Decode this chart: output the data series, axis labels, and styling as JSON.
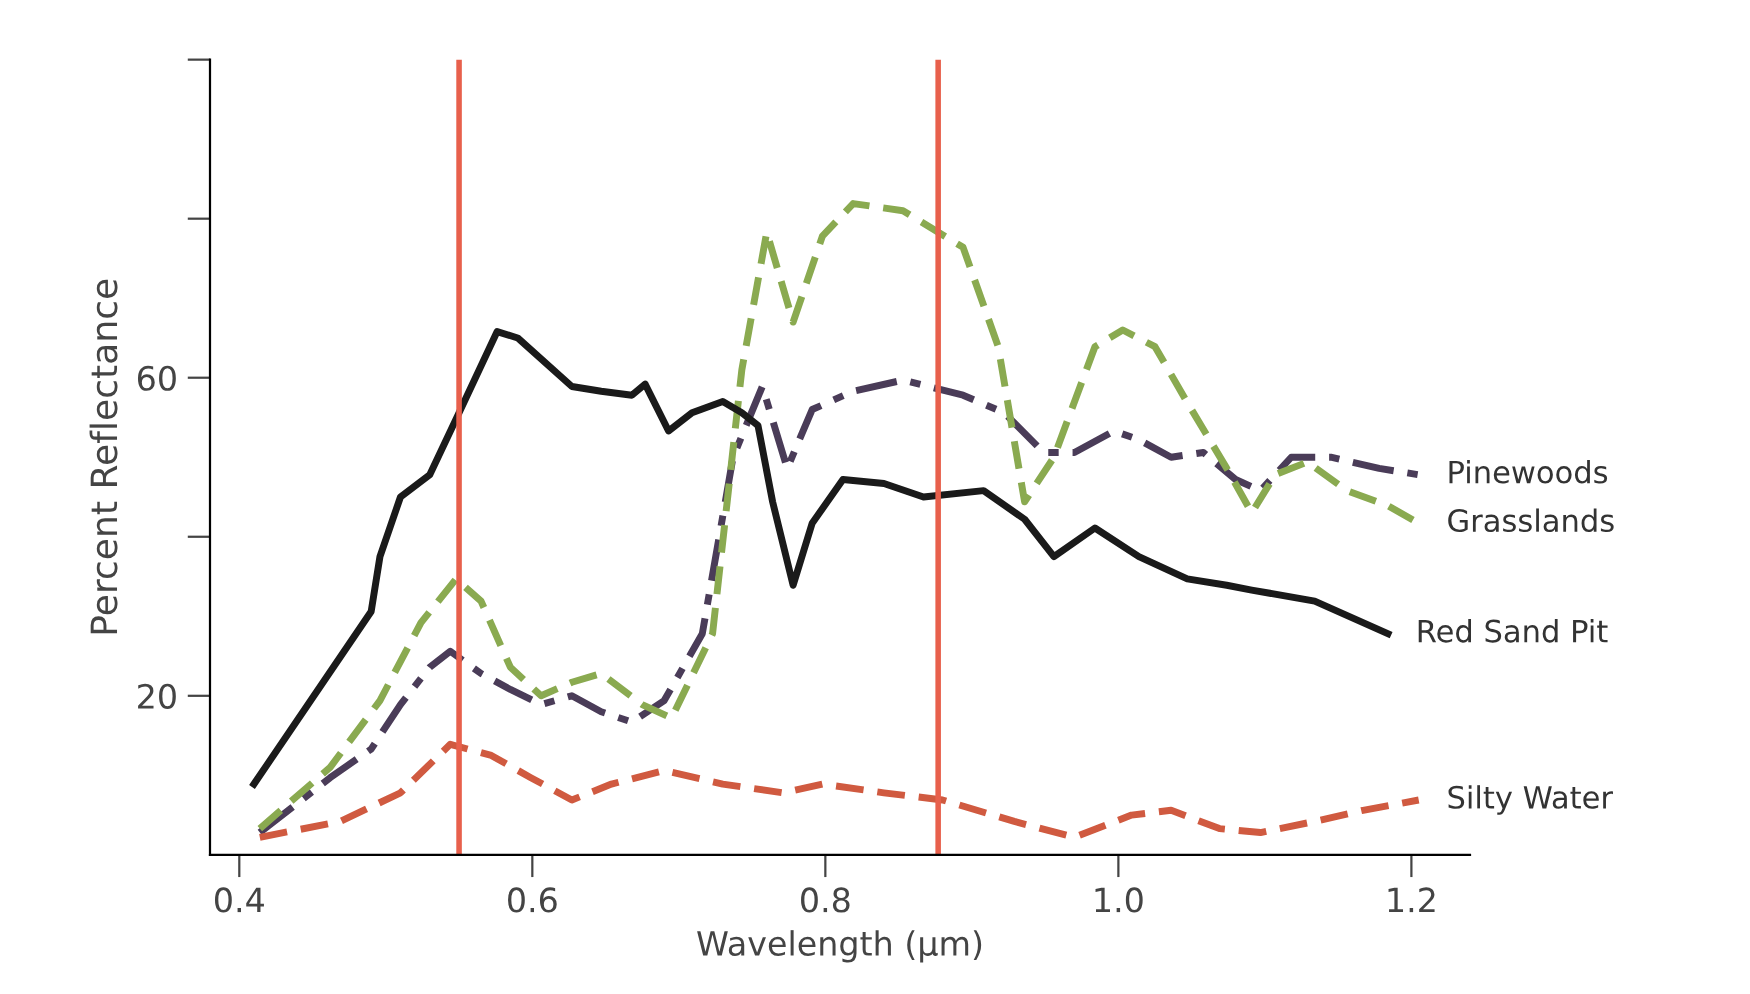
{
  "chart_data": {
    "type": "line",
    "xlabel": "Wavelength (μm)",
    "ylabel": "Percent Reflectance",
    "xlim": [
      0.38,
      1.24
    ],
    "ylim": [
      0,
      100
    ],
    "xticks": [
      0.4,
      0.6,
      0.8,
      {
        "value": 1,
        "label": "1.0"
      },
      1.2
    ],
    "yticks": [
      {
        "value": 20,
        "label": "20"
      },
      {
        "value": 40,
        "label": null
      },
      {
        "value": 60,
        "label": "60"
      },
      {
        "value": 80,
        "label": null
      },
      {
        "value": 100,
        "label": null
      }
    ],
    "grid": false,
    "legend": false,
    "ref_lines": [
      {
        "axis": "x",
        "value": 0.55,
        "color": "#e8604c"
      },
      {
        "axis": "x",
        "value": 0.877,
        "color": "#e8604c"
      }
    ],
    "series": [
      {
        "name": "Pinewoods",
        "color": "#4a3c58",
        "line_style": "dashdot",
        "x": [
          0.414,
          0.462,
          0.49,
          0.51,
          0.53,
          0.544,
          0.565,
          0.585,
          0.606,
          0.627,
          0.647,
          0.668,
          0.69,
          0.716,
          0.737,
          0.757,
          0.774,
          0.791,
          0.819,
          0.853,
          0.894,
          0.922,
          0.949,
          0.97,
          0.997,
          1.014,
          1.036,
          1.058,
          1.08,
          1.097,
          1.118,
          1.145,
          1.178,
          1.205
        ],
        "values": [
          2.8,
          9.7,
          13.3,
          18.9,
          23.6,
          25.6,
          22.8,
          20.8,
          18.9,
          20,
          18,
          16.7,
          19.4,
          27.8,
          50,
          58.9,
          48.6,
          56,
          58.3,
          59.7,
          57.8,
          55.6,
          50.6,
          50.6,
          53.3,
          52.2,
          50,
          50.6,
          47.2,
          45.8,
          50,
          50,
          48.6,
          47.8
        ]
      },
      {
        "name": "Grasslands",
        "color": "#8aaa50",
        "line_style": "dashed",
        "x": [
          0.414,
          0.462,
          0.496,
          0.524,
          0.548,
          0.565,
          0.585,
          0.606,
          0.627,
          0.647,
          0.675,
          0.695,
          0.723,
          0.743,
          0.76,
          0.778,
          0.798,
          0.819,
          0.853,
          0.894,
          0.918,
          0.936,
          0.956,
          0.984,
          1.003,
          1.025,
          1.047,
          1.074,
          1.091,
          1.107,
          1.129,
          1.156,
          1.184,
          1.205
        ],
        "values": [
          3.3,
          11,
          19.4,
          29.2,
          34.7,
          31.9,
          23.6,
          20,
          21.7,
          22.8,
          18.9,
          17.2,
          27.8,
          61,
          78.3,
          67,
          77.8,
          81.9,
          81,
          76.4,
          63.9,
          44.4,
          50,
          63.9,
          66,
          63.9,
          56.9,
          48.6,
          43,
          47.8,
          49.4,
          45.8,
          43.9,
          41.7
        ]
      },
      {
        "name": "Red Sand Pit",
        "color": "#1a1a1a",
        "line_style": "solid",
        "x": [
          0.41,
          0.49,
          0.496,
          0.51,
          0.53,
          0.55,
          0.576,
          0.59,
          0.627,
          0.647,
          0.668,
          0.677,
          0.693,
          0.709,
          0.73,
          0.743,
          0.754,
          0.764,
          0.778,
          0.791,
          0.812,
          0.84,
          0.867,
          0.908,
          0.936,
          0.956,
          0.984,
          1.014,
          1.047,
          1.074,
          1.091,
          1.134,
          1.184
        ],
        "values": [
          8.9,
          30.6,
          37.5,
          45,
          47.8,
          55.6,
          65.8,
          65,
          58.9,
          58.3,
          57.8,
          59.2,
          53.3,
          55.6,
          57,
          55.6,
          54,
          44.4,
          33.9,
          41.7,
          47.2,
          46.7,
          45,
          45.8,
          42.2,
          37.5,
          41.1,
          37.5,
          34.7,
          33.9,
          33.3,
          31.9,
          27.8
        ]
      },
      {
        "name": "Silty Water",
        "color": "#d05a40",
        "line_style": "dashed",
        "x": [
          0.414,
          0.469,
          0.51,
          0.544,
          0.572,
          0.599,
          0.627,
          0.654,
          0.69,
          0.73,
          0.771,
          0.798,
          0.84,
          0.88,
          0.929,
          0.97,
          1.009,
          1.036,
          1.069,
          1.097,
          1.134,
          1.167,
          1.205
        ],
        "values": [
          2.2,
          4.2,
          7.8,
          13.9,
          12.5,
          9.7,
          6.9,
          8.9,
          10.6,
          8.9,
          7.8,
          8.9,
          7.8,
          6.9,
          4.2,
          2.2,
          5,
          5.6,
          3.3,
          2.8,
          4.2,
          5.6,
          6.9
        ]
      }
    ]
  }
}
